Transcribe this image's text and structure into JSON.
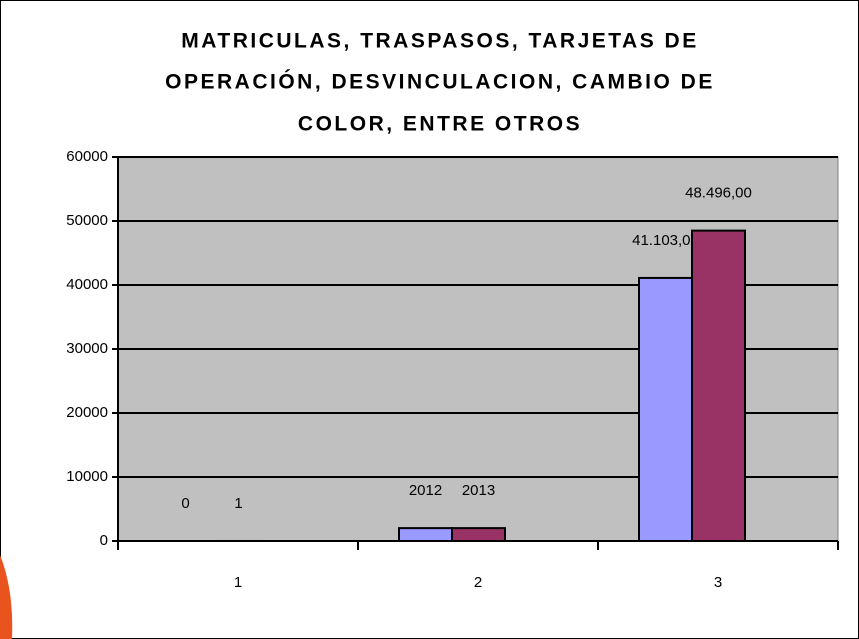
{
  "chart_data": {
    "type": "bar",
    "title": [
      "MATRICULAS, TRASPASOS, TARJETAS DE",
      "OPERACIÓN, DESVINCULACION, CAMBIO DE",
      "COLOR, ENTRE OTROS"
    ],
    "categories": [
      "1",
      "2",
      "3"
    ],
    "series": [
      {
        "color": "#9999ff",
        "values": [
          0,
          2012,
          41103
        ],
        "value_labels": [
          "0",
          "2012",
          "41.103,00"
        ]
      },
      {
        "color": "#993366",
        "values": [
          1,
          2013,
          48496
        ],
        "value_labels": [
          "1",
          "2013",
          "48.496,00"
        ]
      }
    ],
    "ylim": [
      0,
      60000
    ],
    "yticks": [
      0,
      10000,
      20000,
      30000,
      40000,
      50000,
      60000
    ],
    "grid": true
  }
}
